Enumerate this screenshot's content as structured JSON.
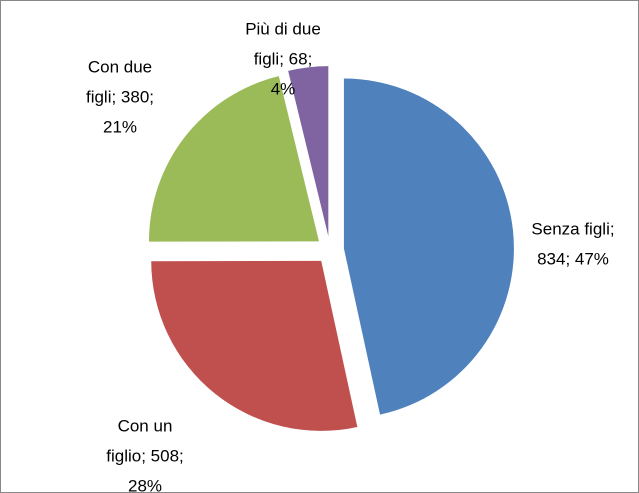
{
  "chart_data": {
    "type": "pie",
    "categories": [
      "Senza figli",
      "Con un figlio",
      "Con due figli",
      "Più di due figli"
    ],
    "values": [
      834,
      508,
      380,
      68
    ],
    "value_labels": [
      [
        "Senza figli;",
        "834; 47%"
      ],
      [
        "Con un",
        "figlio; 508;",
        "28%"
      ],
      [
        "Con due",
        "figli; 380;",
        "21%"
      ],
      [
        "Più di due",
        "figli; 68;",
        "4%"
      ]
    ],
    "colors": [
      "#4f81bd",
      "#c0504d",
      "#9bbb59",
      "#8064a2"
    ],
    "exploded": true
  }
}
